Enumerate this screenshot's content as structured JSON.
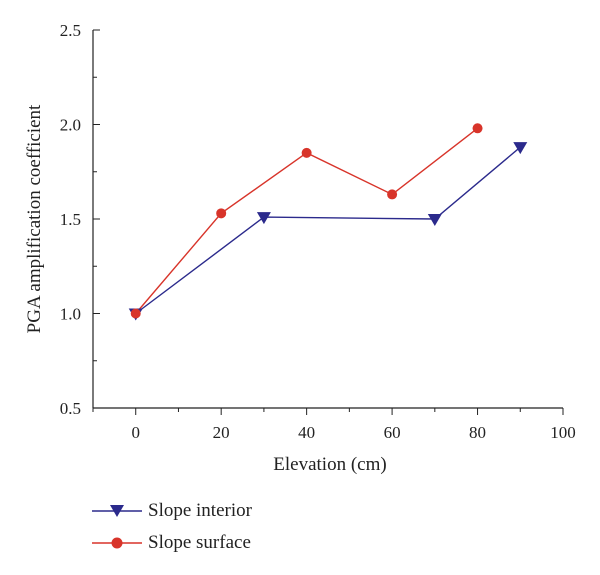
{
  "chart_data": {
    "type": "line",
    "xlabel": "Elevation (cm)",
    "ylabel": "PGA amplification coefficient",
    "xlim": [
      -10,
      100
    ],
    "ylim": [
      0.5,
      2.5
    ],
    "xticks": [
      0,
      20,
      40,
      60,
      80,
      100
    ],
    "yticks": [
      0.5,
      1.0,
      1.5,
      2.0,
      2.5
    ],
    "xtick_labels": [
      "0",
      "20",
      "40",
      "60",
      "80",
      "100"
    ],
    "ytick_labels": [
      "0.5",
      "1.0",
      "1.5",
      "2.0",
      "2.5"
    ],
    "grid": false,
    "legend_position": "bottom-left, below plot",
    "series": [
      {
        "name": "Slope interior",
        "color": "#2b2a8c",
        "marker": "triangle-down",
        "x": [
          0,
          30,
          70,
          90
        ],
        "y": [
          1.0,
          1.51,
          1.5,
          1.88
        ]
      },
      {
        "name": "Slope surface",
        "color": "#d8342a",
        "marker": "circle",
        "x": [
          0,
          20,
          40,
          60,
          80
        ],
        "y": [
          1.0,
          1.53,
          1.85,
          1.63,
          1.98
        ]
      }
    ]
  }
}
